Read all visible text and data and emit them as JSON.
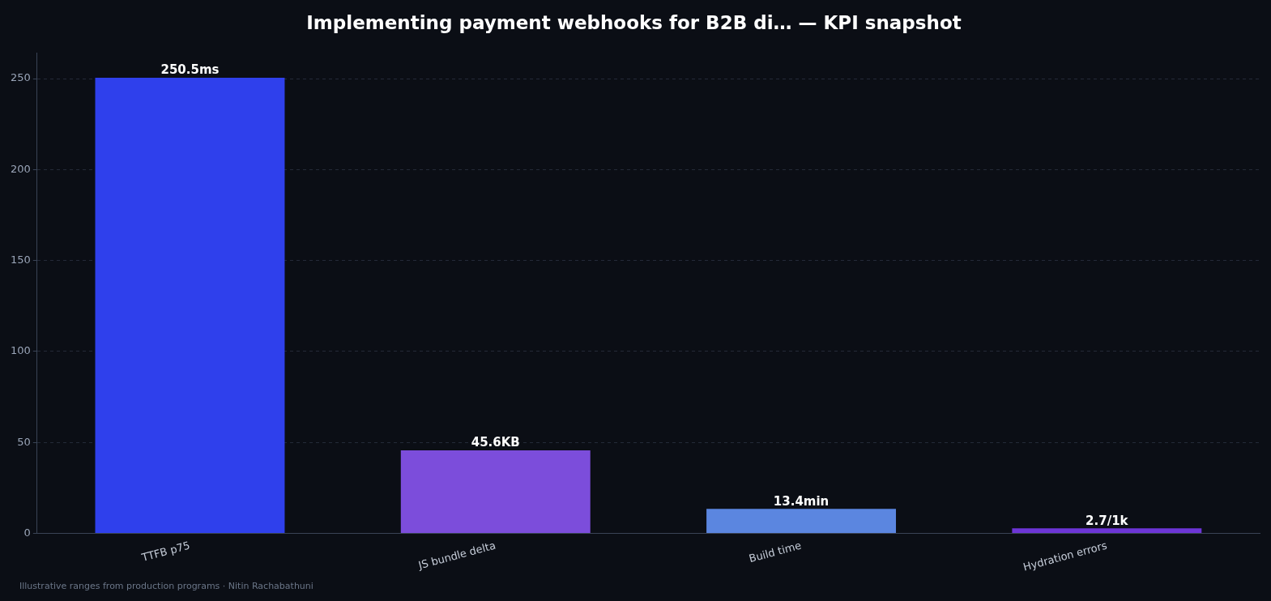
{
  "chart_data": {
    "type": "bar",
    "title": "Implementing payment webhooks for B2B di… — KPI snapshot",
    "categories": [
      "TTFB p75",
      "JS bundle delta",
      "Build time",
      "Hydration errors"
    ],
    "values": [
      250.5,
      45.6,
      13.4,
      2.7
    ],
    "colors": [
      "#2f40ec",
      "#7c4ddb",
      "#5b86e0",
      "#6d35d6"
    ],
    "value_labels": [
      "250.5ms",
      "45.6KB",
      "13.4min",
      "2.7/1k"
    ],
    "ylim": [
      0,
      264
    ],
    "yticks": [
      0,
      50,
      100,
      150,
      200,
      250
    ],
    "grid": "y",
    "annotations": [
      "Illustrative ranges from production programs · Nitin Rachabathuni"
    ]
  }
}
